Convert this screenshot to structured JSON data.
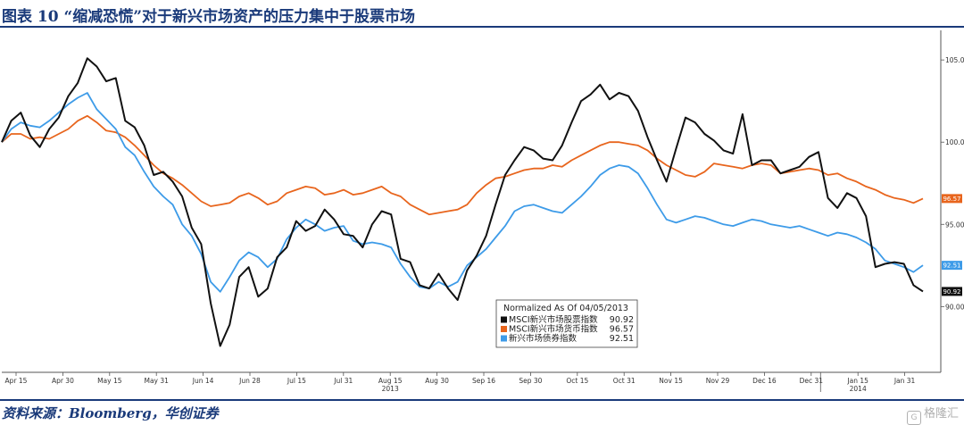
{
  "title": "图表 10 “缩减恐慌”对于新兴市场资产的压力集中于股票市场",
  "source": "资料来源：Bloomberg，华创证券",
  "watermark": "格隆汇",
  "chart_data": {
    "type": "line",
    "legend_title": "Normalized As Of 04/05/2013",
    "legend_position": "bottom-center",
    "grid": false,
    "ylim": [
      86.0,
      106.8
    ],
    "y_ticks": [
      90.0,
      95.0,
      100.0,
      105.0
    ],
    "y_tick_labels": [
      "90.00",
      "95.00",
      "100.00",
      "105.00"
    ],
    "x_ticks": [
      "Apr 15",
      "Apr 30",
      "May 15",
      "May 31",
      "Jun 14",
      "Jun 28",
      "Jul 15",
      "Jul 31",
      "Aug 15",
      "Aug 30",
      "Sep 16",
      "Sep 30",
      "Oct 15",
      "Oct 31",
      "Nov 15",
      "Nov 29",
      "Dec 16",
      "Dec 31",
      "Jan 15",
      "Jan 31"
    ],
    "year_labels": [
      {
        "label": "2013",
        "at_tick": "Aug 15"
      },
      {
        "label": "2014",
        "at_tick": "Jan 15"
      }
    ],
    "series": [
      {
        "name": "MSCI新兴市场股票指数",
        "last_value": "90.92",
        "color": "#111111",
        "values": [
          100.0,
          101.3,
          101.8,
          100.4,
          99.7,
          100.8,
          101.5,
          102.8,
          103.6,
          105.1,
          104.6,
          103.7,
          103.9,
          101.3,
          100.9,
          99.8,
          98.0,
          98.2,
          97.6,
          96.7,
          94.8,
          93.8,
          90.2,
          87.6,
          88.9,
          91.8,
          92.4,
          90.6,
          91.1,
          93.0,
          93.6,
          95.2,
          94.6,
          94.9,
          95.9,
          95.3,
          94.4,
          94.3,
          93.6,
          95.0,
          95.8,
          95.6,
          92.9,
          92.7,
          91.3,
          91.1,
          92.0,
          91.1,
          90.4,
          92.2,
          93.1,
          94.3,
          96.2,
          98.0,
          98.9,
          99.7,
          99.5,
          99.0,
          98.9,
          99.8,
          101.2,
          102.5,
          102.9,
          103.5,
          102.6,
          103.0,
          102.8,
          101.9,
          100.3,
          98.9,
          97.6,
          99.6,
          101.5,
          101.2,
          100.5,
          100.1,
          99.5,
          99.3,
          101.7,
          98.6,
          98.9,
          98.9,
          98.1,
          98.3,
          98.5,
          99.1,
          99.4,
          96.6,
          96.0,
          96.9,
          96.6,
          95.5,
          92.4,
          92.6,
          92.7,
          92.6,
          91.3,
          90.92
        ]
      },
      {
        "name": "MSCI新兴市场货币指数",
        "last_value": "96.57",
        "color": "#e8651d",
        "values": [
          100.0,
          100.5,
          100.5,
          100.2,
          100.3,
          100.2,
          100.5,
          100.8,
          101.3,
          101.6,
          101.2,
          100.7,
          100.6,
          100.3,
          99.8,
          99.2,
          98.6,
          98.1,
          97.8,
          97.4,
          96.9,
          96.4,
          96.1,
          96.2,
          96.3,
          96.7,
          96.9,
          96.6,
          96.2,
          96.4,
          96.9,
          97.1,
          97.3,
          97.2,
          96.8,
          96.9,
          97.1,
          96.8,
          96.9,
          97.1,
          97.3,
          96.9,
          96.7,
          96.2,
          95.9,
          95.6,
          95.7,
          95.8,
          95.9,
          96.2,
          96.9,
          97.4,
          97.8,
          97.9,
          98.1,
          98.3,
          98.4,
          98.4,
          98.6,
          98.5,
          98.9,
          99.2,
          99.5,
          99.8,
          100.0,
          100.0,
          99.9,
          99.8,
          99.5,
          99.0,
          98.6,
          98.3,
          98.0,
          97.9,
          98.2,
          98.7,
          98.6,
          98.5,
          98.4,
          98.6,
          98.7,
          98.6,
          98.1,
          98.2,
          98.3,
          98.4,
          98.3,
          98.0,
          98.1,
          97.8,
          97.6,
          97.3,
          97.1,
          96.8,
          96.6,
          96.5,
          96.3,
          96.57
        ]
      },
      {
        "name": "新兴市场债券指数",
        "last_value": "92.51",
        "color": "#3d9be8",
        "values": [
          100.0,
          100.8,
          101.2,
          101.0,
          100.9,
          101.3,
          101.8,
          102.3,
          102.7,
          103.0,
          102.0,
          101.4,
          100.8,
          99.7,
          99.2,
          98.2,
          97.3,
          96.7,
          96.2,
          95.0,
          94.3,
          93.2,
          91.5,
          90.9,
          91.8,
          92.8,
          93.3,
          93.0,
          92.4,
          92.9,
          94.1,
          94.8,
          95.3,
          95.0,
          94.6,
          94.8,
          94.9,
          94.0,
          93.8,
          93.9,
          93.8,
          93.6,
          92.6,
          91.8,
          91.2,
          91.1,
          91.5,
          91.2,
          91.5,
          92.5,
          93.0,
          93.5,
          94.2,
          94.9,
          95.8,
          96.1,
          96.2,
          96.0,
          95.8,
          95.7,
          96.2,
          96.7,
          97.3,
          98.0,
          98.4,
          98.6,
          98.5,
          98.1,
          97.2,
          96.2,
          95.3,
          95.1,
          95.3,
          95.5,
          95.4,
          95.2,
          95.0,
          94.9,
          95.1,
          95.3,
          95.2,
          95.0,
          94.9,
          94.8,
          94.9,
          94.7,
          94.5,
          94.3,
          94.5,
          94.4,
          94.2,
          93.9,
          93.5,
          92.8,
          92.6,
          92.4,
          92.1,
          92.51
        ]
      }
    ]
  }
}
